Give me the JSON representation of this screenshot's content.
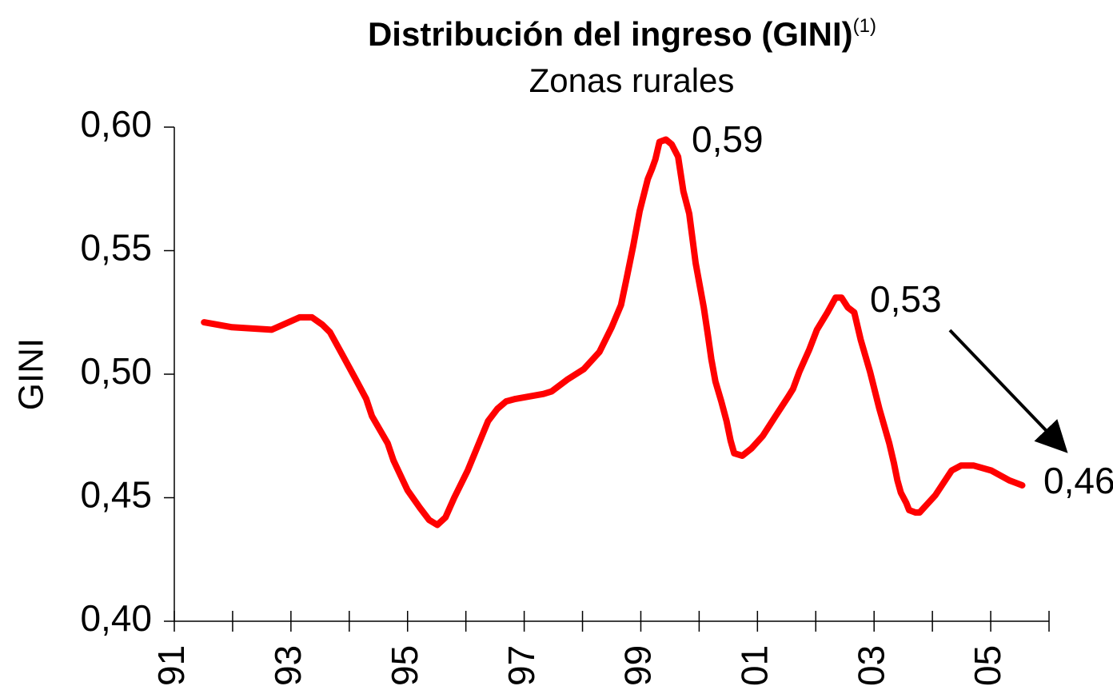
{
  "chart_data": {
    "type": "line",
    "title": "Distribución del ingreso (GINI)",
    "title_note": "(1)",
    "subtitle": "Zonas rurales",
    "y_label": "GINI",
    "xlim": [
      1991,
      2006
    ],
    "xticks": [
      {
        "value": 1991,
        "label": "91"
      },
      {
        "value": 1993,
        "label": "93"
      },
      {
        "value": 1995,
        "label": "95"
      },
      {
        "value": 1997,
        "label": "97"
      },
      {
        "value": 1999,
        "label": "99"
      },
      {
        "value": 2001,
        "label": "01"
      },
      {
        "value": 2003,
        "label": "03"
      },
      {
        "value": 2005,
        "label": "05"
      }
    ],
    "xminor_ticks": [
      1992,
      1994,
      1996,
      1998,
      2000,
      2002,
      2004,
      2006
    ],
    "ylim": [
      0.4,
      0.6
    ],
    "yticks": [
      {
        "value": 0.4,
        "label": "0,40"
      },
      {
        "value": 0.45,
        "label": "0,45"
      },
      {
        "value": 0.5,
        "label": "0,50"
      },
      {
        "value": 0.55,
        "label": "0,55"
      },
      {
        "value": 0.6,
        "label": "0,60"
      }
    ],
    "series": [
      {
        "name": "GINI",
        "color": "#ff0000",
        "x": [
          1991.51,
          1991.99,
          1992.67,
          1993.15,
          1993.36,
          1993.54,
          1993.67,
          1993.88,
          1994.11,
          1994.29,
          1994.39,
          1994.66,
          1994.76,
          1995.0,
          1995.21,
          1995.37,
          1995.51,
          1995.65,
          1995.8,
          1996.03,
          1996.24,
          1996.38,
          1996.54,
          1996.69,
          1996.85,
          1997.33,
          1997.47,
          1997.75,
          1998.02,
          1998.29,
          1998.5,
          1998.66,
          1998.75,
          1998.87,
          1998.98,
          1999.12,
          1999.19,
          1999.25,
          1999.32,
          1999.43,
          1999.53,
          1999.64,
          1999.73,
          1999.83,
          1999.94,
          2000.08,
          2000.15,
          2000.21,
          2000.28,
          2000.38,
          2000.47,
          2000.54,
          2000.6,
          2000.74,
          2000.9,
          2001.09,
          2001.31,
          2001.53,
          2001.61,
          2001.72,
          2001.89,
          2002.02,
          2002.2,
          2002.34,
          2002.44,
          2002.55,
          2002.66,
          2002.77,
          2002.93,
          2003.09,
          2003.26,
          2003.34,
          2003.4,
          2003.46,
          2003.55,
          2003.6,
          2003.71,
          2003.78,
          2004.05,
          2004.33,
          2004.49,
          2004.71,
          2005.01,
          2005.32,
          2005.54
        ],
        "values": [
          0.521,
          0.519,
          0.518,
          0.523,
          0.523,
          0.52,
          0.517,
          0.508,
          0.498,
          0.49,
          0.483,
          0.472,
          0.465,
          0.453,
          0.446,
          0.441,
          0.439,
          0.442,
          0.45,
          0.461,
          0.473,
          0.481,
          0.486,
          0.489,
          0.49,
          0.492,
          0.493,
          0.498,
          0.502,
          0.509,
          0.519,
          0.528,
          0.538,
          0.552,
          0.566,
          0.579,
          0.583,
          0.587,
          0.594,
          0.595,
          0.593,
          0.588,
          0.574,
          0.565,
          0.545,
          0.527,
          0.516,
          0.506,
          0.497,
          0.489,
          0.481,
          0.473,
          0.468,
          0.467,
          0.47,
          0.475,
          0.483,
          0.491,
          0.494,
          0.501,
          0.51,
          0.518,
          0.525,
          0.531,
          0.531,
          0.527,
          0.525,
          0.514,
          0.501,
          0.486,
          0.472,
          0.464,
          0.457,
          0.452,
          0.448,
          0.445,
          0.444,
          0.444,
          0.451,
          0.461,
          0.463,
          0.463,
          0.461,
          0.457,
          0.455
        ]
      }
    ],
    "annotations": [
      "0,59",
      "0,53",
      "0,46"
    ]
  }
}
